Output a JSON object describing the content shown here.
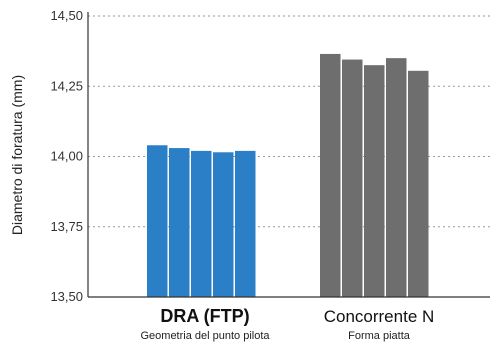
{
  "chart_data": {
    "type": "bar",
    "ylabel": "Diametro di foratura (mm)",
    "ylim": [
      13.5,
      14.5
    ],
    "yticks": [
      13.5,
      13.75,
      14.0,
      14.25,
      14.5
    ],
    "ytick_labels": [
      "13,50",
      "13,75",
      "14,00",
      "14,25",
      "14,50"
    ],
    "grid": true,
    "groups": [
      {
        "name": "DRA (FTP)",
        "subtitle": "Geometria del punto pilota",
        "color": "#2a7fc6",
        "values": [
          14.04,
          14.03,
          14.02,
          14.015,
          14.02
        ]
      },
      {
        "name": "Concorrente N",
        "subtitle": "Forma piatta",
        "color": "#6e6e6e",
        "values": [
          14.365,
          14.345,
          14.325,
          14.35,
          14.305
        ]
      }
    ]
  }
}
